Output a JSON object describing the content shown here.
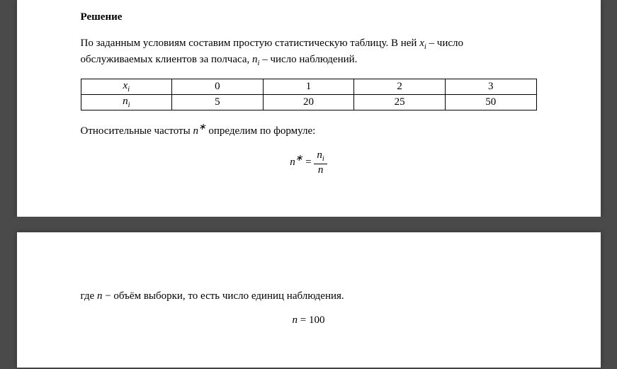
{
  "heading": "Решение",
  "intro_part1": "По заданным условиям составим простую статистическую таблицу. В ней ",
  "intro_xi_var": "x",
  "intro_xi_sub": "i",
  "intro_part2": " – число обслуживаемых клиентов за полчаса, ",
  "intro_ni_var": "n",
  "intro_ni_sub": "i",
  "intro_part3": " – число наблюдений.",
  "table": {
    "row1_label_var": "x",
    "row1_label_sub": "i",
    "row1": [
      "0",
      "1",
      "2",
      "3"
    ],
    "row2_label_var": "n",
    "row2_label_sub": "i",
    "row2": [
      "5",
      "20",
      "25",
      "50"
    ]
  },
  "freq_para_part1": "Относительные частоты  ",
  "freq_nstar_var": "n",
  "freq_nstar_sup": "∗",
  "freq_para_part2": "  определим по формуле:",
  "formula1": {
    "lhs_var": "n",
    "lhs_sup": "∗",
    "eq": " = ",
    "num_var": "n",
    "num_sub": "i",
    "den_var": "n"
  },
  "page2_para_part1": "где ",
  "page2_n_var": "n",
  "page2_para_part2": " − объём выборки, то есть число единиц наблюдения.",
  "formula2": {
    "lhs_var": "n",
    "eq": " = ",
    "rhs": " 100"
  }
}
